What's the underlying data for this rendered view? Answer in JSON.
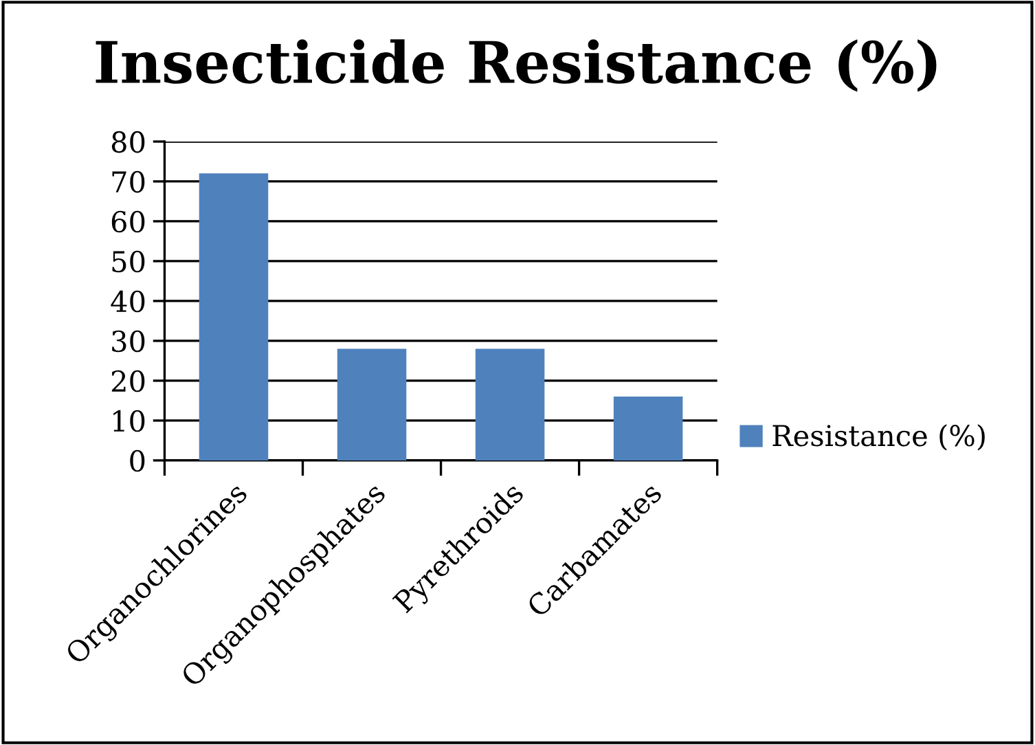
{
  "chart_data": {
    "type": "bar",
    "title": "Insecticide Resistance (%)",
    "categories": [
      "Organochlorines",
      "Organophosphates",
      "Pyrethroids",
      "Carbamates"
    ],
    "series": [
      {
        "name": "Resistance (%)",
        "color": "#4f81bd",
        "values": [
          72,
          28,
          28,
          16
        ]
      }
    ],
    "ylim": [
      0,
      80
    ],
    "yticks": [
      0,
      10,
      20,
      30,
      40,
      50,
      60,
      70,
      80
    ],
    "grid": "y",
    "legend": "right"
  }
}
